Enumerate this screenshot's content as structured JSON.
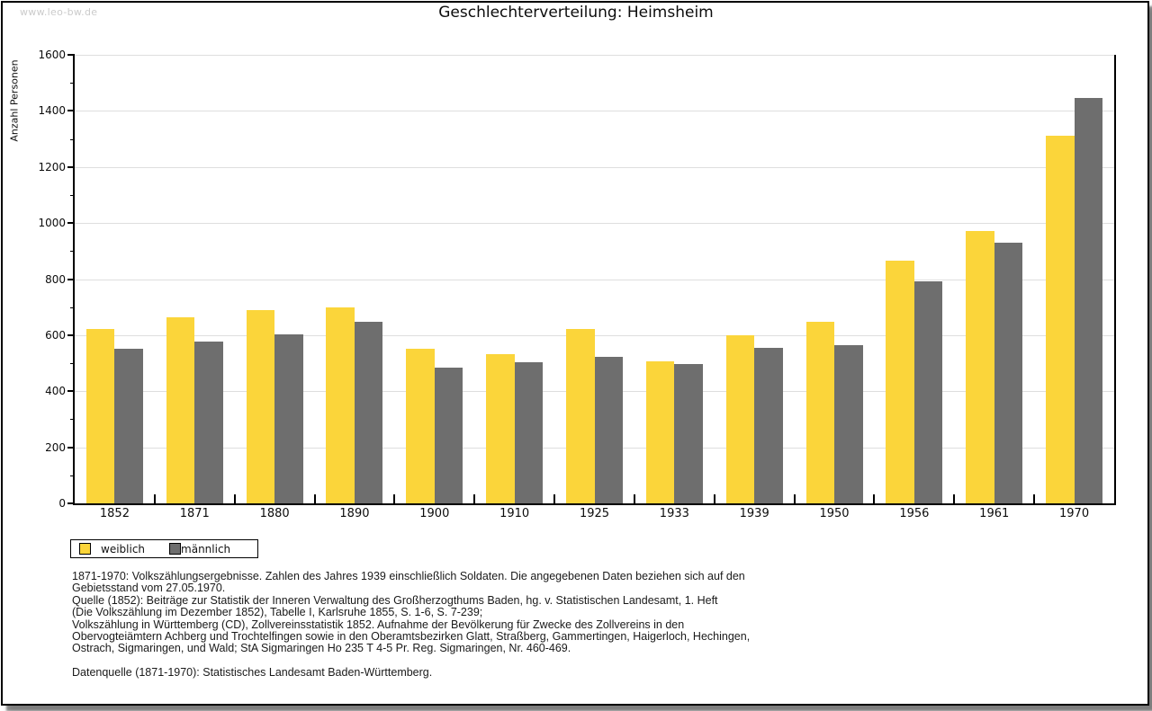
{
  "watermark": "www.leo-bw.de",
  "header": {
    "title": "Geschlechterverteilung: Heimsheim"
  },
  "colors": {
    "weiblich": "#FBD53A",
    "maennlich": "#6E6E6E",
    "grid": "#DEDEDE",
    "axis": "#000000",
    "watermark_gray": "#CBCBCB"
  },
  "chart_data": {
    "type": "bar",
    "title": "Geschlechterverteilung: Heimsheim",
    "xlabel": "",
    "ylabel": "Anzahl Personen",
    "categories": [
      "1852",
      "1871",
      "1880",
      "1890",
      "1900",
      "1910",
      "1925",
      "1933",
      "1939",
      "1950",
      "1956",
      "1961",
      "1970"
    ],
    "series": [
      {
        "name": "weiblich",
        "color": "#FBD53A",
        "values": [
          623,
          665,
          690,
          700,
          550,
          533,
          622,
          507,
          598,
          648,
          866,
          972,
          1313
        ]
      },
      {
        "name": "männlich",
        "color": "#6E6E6E",
        "values": [
          552,
          578,
          603,
          648,
          485,
          505,
          522,
          498,
          555,
          565,
          793,
          930,
          1445
        ]
      }
    ],
    "ylim": [
      0,
      1600
    ],
    "ytick_step": 200,
    "ytick_minor_step": 100,
    "grid": true,
    "legend_position": "bottom-left"
  },
  "legend": {
    "items": [
      {
        "label": "weiblich",
        "color": "#FBD53A"
      },
      {
        "label": "männlich",
        "color": "#6E6E6E"
      }
    ]
  },
  "footer": {
    "lines": [
      "1871-1970: Volkszählungsergebnisse. Zahlen des Jahres 1939 einschließlich Soldaten. Die angegebenen Daten beziehen sich auf den",
      "Gebietsstand vom 27.05.1970.",
      "Quelle (1852): Beiträge zur Statistik der Inneren Verwaltung des Großherzogthums Baden, hg. v. Statistischen Landesamt, 1. Heft",
      "(Die Volkszählung im Dezember 1852), Tabelle I, Karlsruhe 1855, S. 1-6, S. 7-239;",
      "Volkszählung in Württemberg (CD), Zollvereinsstatistik 1852. Aufnahme der Bevölkerung für Zwecke des Zollvereins in den",
      "Obervogteiämtern Achberg und Trochtelfingen sowie in den Oberamtsbezirken Glatt, Straßberg, Gammertingen, Haigerloch, Hechingen,",
      "Ostrach, Sigmaringen, und Wald; StA Sigmaringen Ho 235 T 4-5 Pr. Reg. Sigmaringen, Nr. 460-469."
    ],
    "datasource": "Datenquelle (1871-1970): Statistisches Landesamt Baden-Württemberg."
  }
}
